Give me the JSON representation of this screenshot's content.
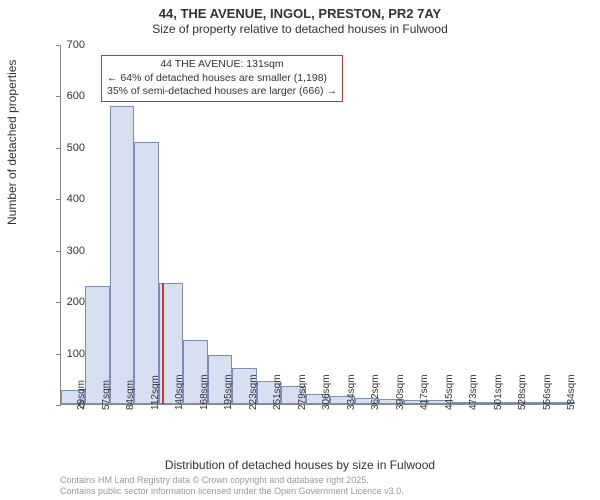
{
  "chart": {
    "type": "histogram",
    "title_main": "44, THE AVENUE, INGOL, PRESTON, PR2 7AY",
    "title_sub": "Size of property relative to detached houses in Fulwood",
    "title_fontsize_main": 13,
    "title_fontsize_sub": 12,
    "ylabel": "Number of detached properties",
    "xlabel": "Distribution of detached houses by size in Fulwood",
    "label_fontsize": 12,
    "background_color": "#ffffff",
    "bar_fill": "#d6e0f0",
    "bar_border": "#7a8fb8",
    "axis_color": "#888888",
    "annotation_border": "#cc3333",
    "marker_color": "#cc3333",
    "ylim": [
      0,
      700
    ],
    "yticks": [
      0,
      100,
      200,
      300,
      400,
      500,
      600,
      700
    ],
    "xticks": [
      "29sqm",
      "57sqm",
      "84sqm",
      "112sqm",
      "140sqm",
      "168sqm",
      "195sqm",
      "223sqm",
      "251sqm",
      "279sqm",
      "306sqm",
      "334sqm",
      "362sqm",
      "390sqm",
      "417sqm",
      "445sqm",
      "473sqm",
      "501sqm",
      "528sqm",
      "556sqm",
      "584sqm"
    ],
    "values": [
      28,
      230,
      580,
      510,
      235,
      125,
      95,
      70,
      45,
      35,
      20,
      15,
      12,
      10,
      8,
      8,
      3,
      2,
      1,
      1,
      1
    ],
    "marker_value": 131,
    "marker_bin_left": 112,
    "bin_width": 28,
    "xmin": 15,
    "xmax": 598,
    "annotation": {
      "line1": "44 THE AVENUE: 131sqm",
      "line2": "← 64% of detached houses are smaller (1,198)",
      "line3": "35% of semi-detached houses are larger (666) →"
    },
    "footnote1": "Contains HM Land Registry data © Crown copyright and database right 2025.",
    "footnote2": "Contains public sector information licensed under the Open Government Licence v3.0."
  }
}
